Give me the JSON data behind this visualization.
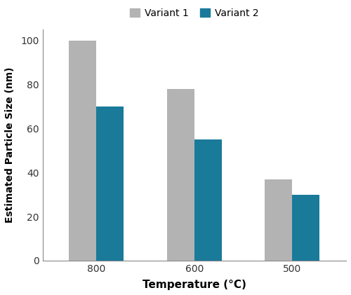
{
  "categories": [
    "800",
    "600",
    "500"
  ],
  "variant1_values": [
    100,
    78,
    37
  ],
  "variant2_values": [
    70,
    55,
    30
  ],
  "variant1_color": "#b3b3b3",
  "variant2_color": "#1a7a9a",
  "xlabel": "Temperature (°C)",
  "ylabel": "Estimated Particle Size (nm)",
  "ylim": [
    0,
    105
  ],
  "yticks": [
    0,
    20,
    40,
    60,
    80,
    100
  ],
  "legend_labels": [
    "Variant 1",
    "Variant 2"
  ],
  "bar_width": 0.28,
  "background_color": "#ffffff",
  "xlabel_fontsize": 11,
  "ylabel_fontsize": 10,
  "tick_fontsize": 10,
  "legend_fontsize": 10
}
